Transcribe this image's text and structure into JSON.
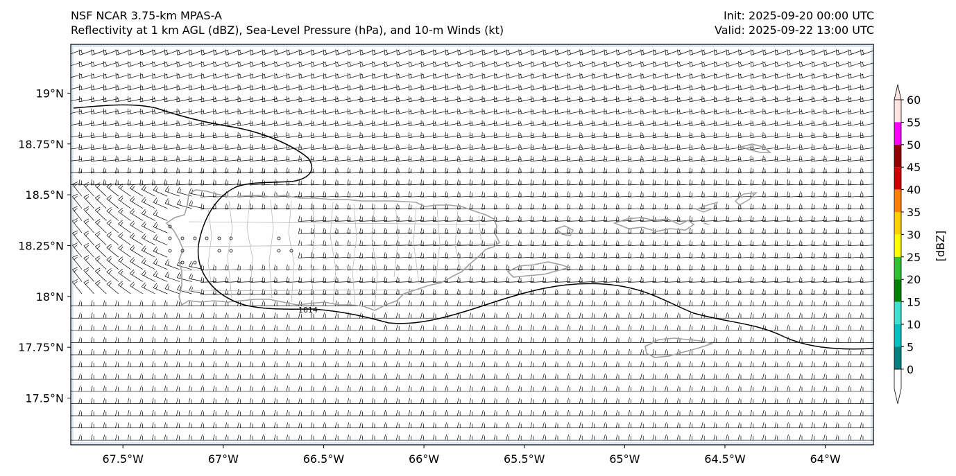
{
  "header": {
    "title_line1": "NSF NCAR 3.75-km MPAS-A",
    "title_line2": "Reflectivity at 1 km AGL (dBZ), Sea-Level Pressure (hPa), and 10-m Winds (kt)",
    "init": "Init: 2025-09-20 00:00 UTC",
    "valid": "Valid: 2025-09-22 13:00 UTC"
  },
  "map": {
    "lon_range": [
      -67.76,
      -63.76
    ],
    "lat_range": [
      17.27,
      19.24
    ],
    "lon_ticks": [
      {
        "value": -67.5,
        "label": "67.5°W"
      },
      {
        "value": -67.0,
        "label": "67°W"
      },
      {
        "value": -66.5,
        "label": "66.5°W"
      },
      {
        "value": -66.0,
        "label": "66°W"
      },
      {
        "value": -65.5,
        "label": "65.5°W"
      },
      {
        "value": -65.0,
        "label": "65°W"
      },
      {
        "value": -64.5,
        "label": "64.5°W"
      },
      {
        "value": -64.0,
        "label": "64°W"
      }
    ],
    "lat_ticks": [
      {
        "value": 19.0,
        "label": "19°N"
      },
      {
        "value": 18.75,
        "label": "18.75°N"
      },
      {
        "value": 18.5,
        "label": "18.5°N"
      },
      {
        "value": 18.25,
        "label": "18.25°N"
      },
      {
        "value": 18.0,
        "label": "18°N"
      },
      {
        "value": 17.75,
        "label": "17.75°N"
      },
      {
        "value": 17.5,
        "label": "17.5°N"
      }
    ],
    "isobar_label": "1014",
    "coast_color": "#a0a0a0",
    "isobar_color": "#000000"
  },
  "colorbar": {
    "label": "[dBZ]",
    "ticks": [
      "0",
      "5",
      "10",
      "15",
      "20",
      "25",
      "30",
      "35",
      "40",
      "45",
      "50",
      "55",
      "60"
    ],
    "colors": [
      "#008080",
      "#00c0c0",
      "#40e0d0",
      "#008000",
      "#30c030",
      "#ffff00",
      "#ffd000",
      "#ff8000",
      "#d00000",
      "#900000",
      "#ff00ff",
      "#ffe4e1"
    ]
  }
}
